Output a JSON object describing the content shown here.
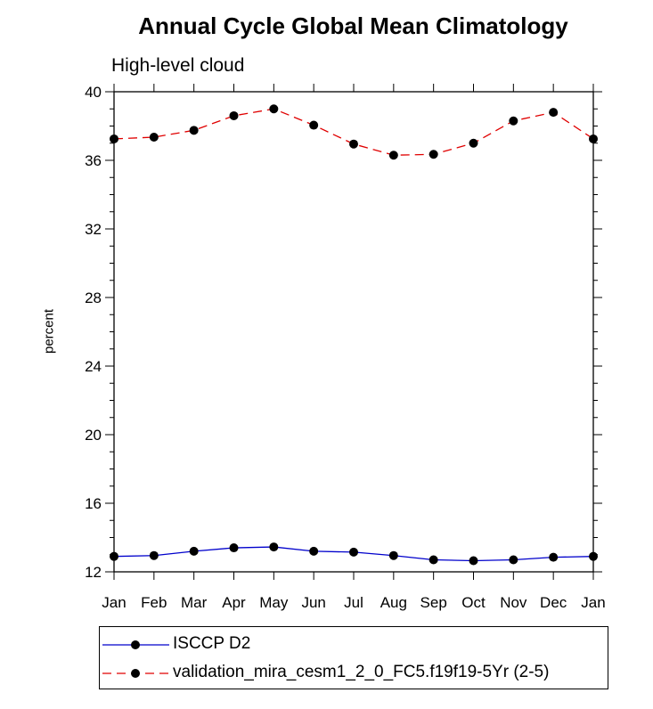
{
  "chart_data": {
    "type": "line",
    "title": "Annual Cycle Global Mean Climatology",
    "subtitle": "High-level cloud",
    "xlabel": "",
    "ylabel": "percent",
    "categories": [
      "Jan",
      "Feb",
      "Mar",
      "Apr",
      "May",
      "Jun",
      "Jul",
      "Aug",
      "Sep",
      "Oct",
      "Nov",
      "Dec",
      "Jan"
    ],
    "ylim": [
      12,
      40
    ],
    "yticks": [
      12,
      16,
      20,
      24,
      28,
      32,
      36,
      40
    ],
    "grid": false,
    "legend_position": "bottom",
    "series": [
      {
        "name": "ISCCP D2",
        "color": "#0000cc",
        "dash": "solid",
        "values": [
          12.9,
          12.95,
          13.2,
          13.4,
          13.45,
          13.2,
          13.15,
          12.95,
          12.7,
          12.65,
          12.7,
          12.85,
          12.9
        ]
      },
      {
        "name": "validation_mira_cesm1_2_0_FC5.f19f19-5Yr (2-5)",
        "color": "#e00000",
        "dash": "dashed",
        "values": [
          37.25,
          37.35,
          37.75,
          38.6,
          39.0,
          38.05,
          36.95,
          36.3,
          36.35,
          37.0,
          38.3,
          38.8,
          37.25
        ]
      }
    ]
  }
}
